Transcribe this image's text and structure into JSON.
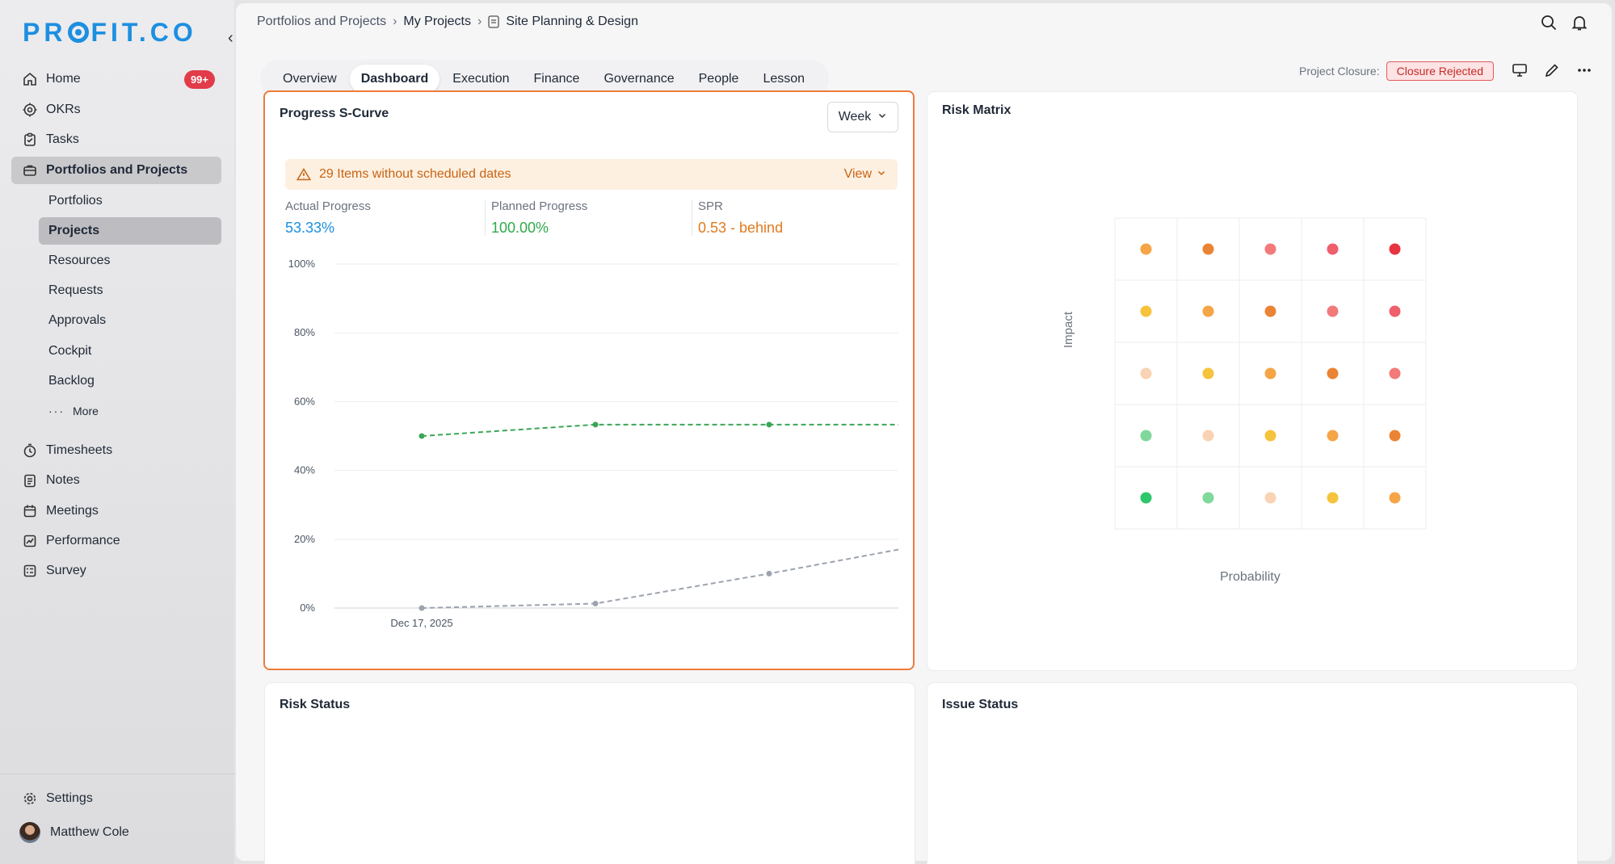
{
  "sidebar": {
    "logo": "PROFIT.CO",
    "collapse_icon": "chevron-left-icon",
    "items": [
      {
        "label": "Home",
        "icon": "home-icon",
        "badge": "99+"
      },
      {
        "label": "OKRs",
        "icon": "target-icon"
      },
      {
        "label": "Tasks",
        "icon": "tasks-icon"
      },
      {
        "label": "Portfolios and Projects",
        "icon": "briefcase-icon",
        "active": true
      }
    ],
    "sub_items": [
      "Portfolios",
      "Projects",
      "Resources",
      "Requests",
      "Approvals",
      "Cockpit",
      "Backlog"
    ],
    "more_label": "More",
    "items2": [
      {
        "label": "Timesheets",
        "icon": "clock-icon"
      },
      {
        "label": "Notes",
        "icon": "notes-icon"
      },
      {
        "label": "Meetings",
        "icon": "calendar-icon"
      },
      {
        "label": "Performance",
        "icon": "chart-icon"
      },
      {
        "label": "Survey",
        "icon": "survey-icon"
      }
    ],
    "settings_label": "Settings",
    "user_name": "Matthew Cole"
  },
  "breadcrumb": [
    "Portfolios and Projects",
    "My Projects",
    "Site Planning & Design"
  ],
  "tabs": [
    "Overview",
    "Dashboard",
    "Execution",
    "Finance",
    "Governance",
    "People",
    "Lesson"
  ],
  "active_tab": "Dashboard",
  "closure": {
    "label": "Project Closure:",
    "status": "Closure Rejected"
  },
  "scurve": {
    "title": "Progress S-Curve",
    "period": "Week",
    "warning": "29 Items without scheduled dates",
    "view_label": "View",
    "stats": [
      {
        "label": "Actual Progress",
        "value": "53.33%",
        "color": "#1d8fe0"
      },
      {
        "label": "Planned Progress",
        "value": "100.00%",
        "color": "#2eaa4a"
      },
      {
        "label": "SPR",
        "value": "0.53 - behind",
        "color": "#e07a1f"
      }
    ]
  },
  "chart_data": {
    "type": "line",
    "x": [
      "Dec 17, 2025",
      "",
      "",
      ""
    ],
    "tick_labels_x": [
      "Dec 17, 2025"
    ],
    "y_ticks": [
      "100%",
      "80%",
      "60%",
      "40%",
      "20%",
      "0%"
    ],
    "ylim": [
      0,
      100
    ],
    "series": [
      {
        "values": [
          50,
          53.33,
          53.33,
          53.33
        ],
        "color": "#3aa655",
        "style": "dashed"
      },
      {
        "values": [
          0,
          1.3,
          10,
          17
        ],
        "color": "#9ca3af",
        "style": "dashed"
      }
    ],
    "grid": true
  },
  "risk_matrix": {
    "title": "Risk Matrix",
    "ylabel": "Impact",
    "xlabel": "Probability",
    "rows": [
      [
        "#f5a546",
        "#ea8434",
        "#f27a7a",
        "#ef5f6c",
        "#e8323f"
      ],
      [
        "#f6c33c",
        "#f5a546",
        "#ea8434",
        "#f27a7a",
        "#ef5f6c"
      ],
      [
        "#f9d3b3",
        "#f6c33c",
        "#f5a546",
        "#ea8434",
        "#f27a7a"
      ],
      [
        "#80d89b",
        "#f9d3b3",
        "#f6c33c",
        "#f5a546",
        "#ea8434"
      ],
      [
        "#2ec76a",
        "#80d89b",
        "#f9d3b3",
        "#f6c33c",
        "#f5a546"
      ]
    ]
  },
  "risk_status": {
    "title": "Risk Status"
  },
  "issue_status": {
    "title": "Issue Status"
  }
}
